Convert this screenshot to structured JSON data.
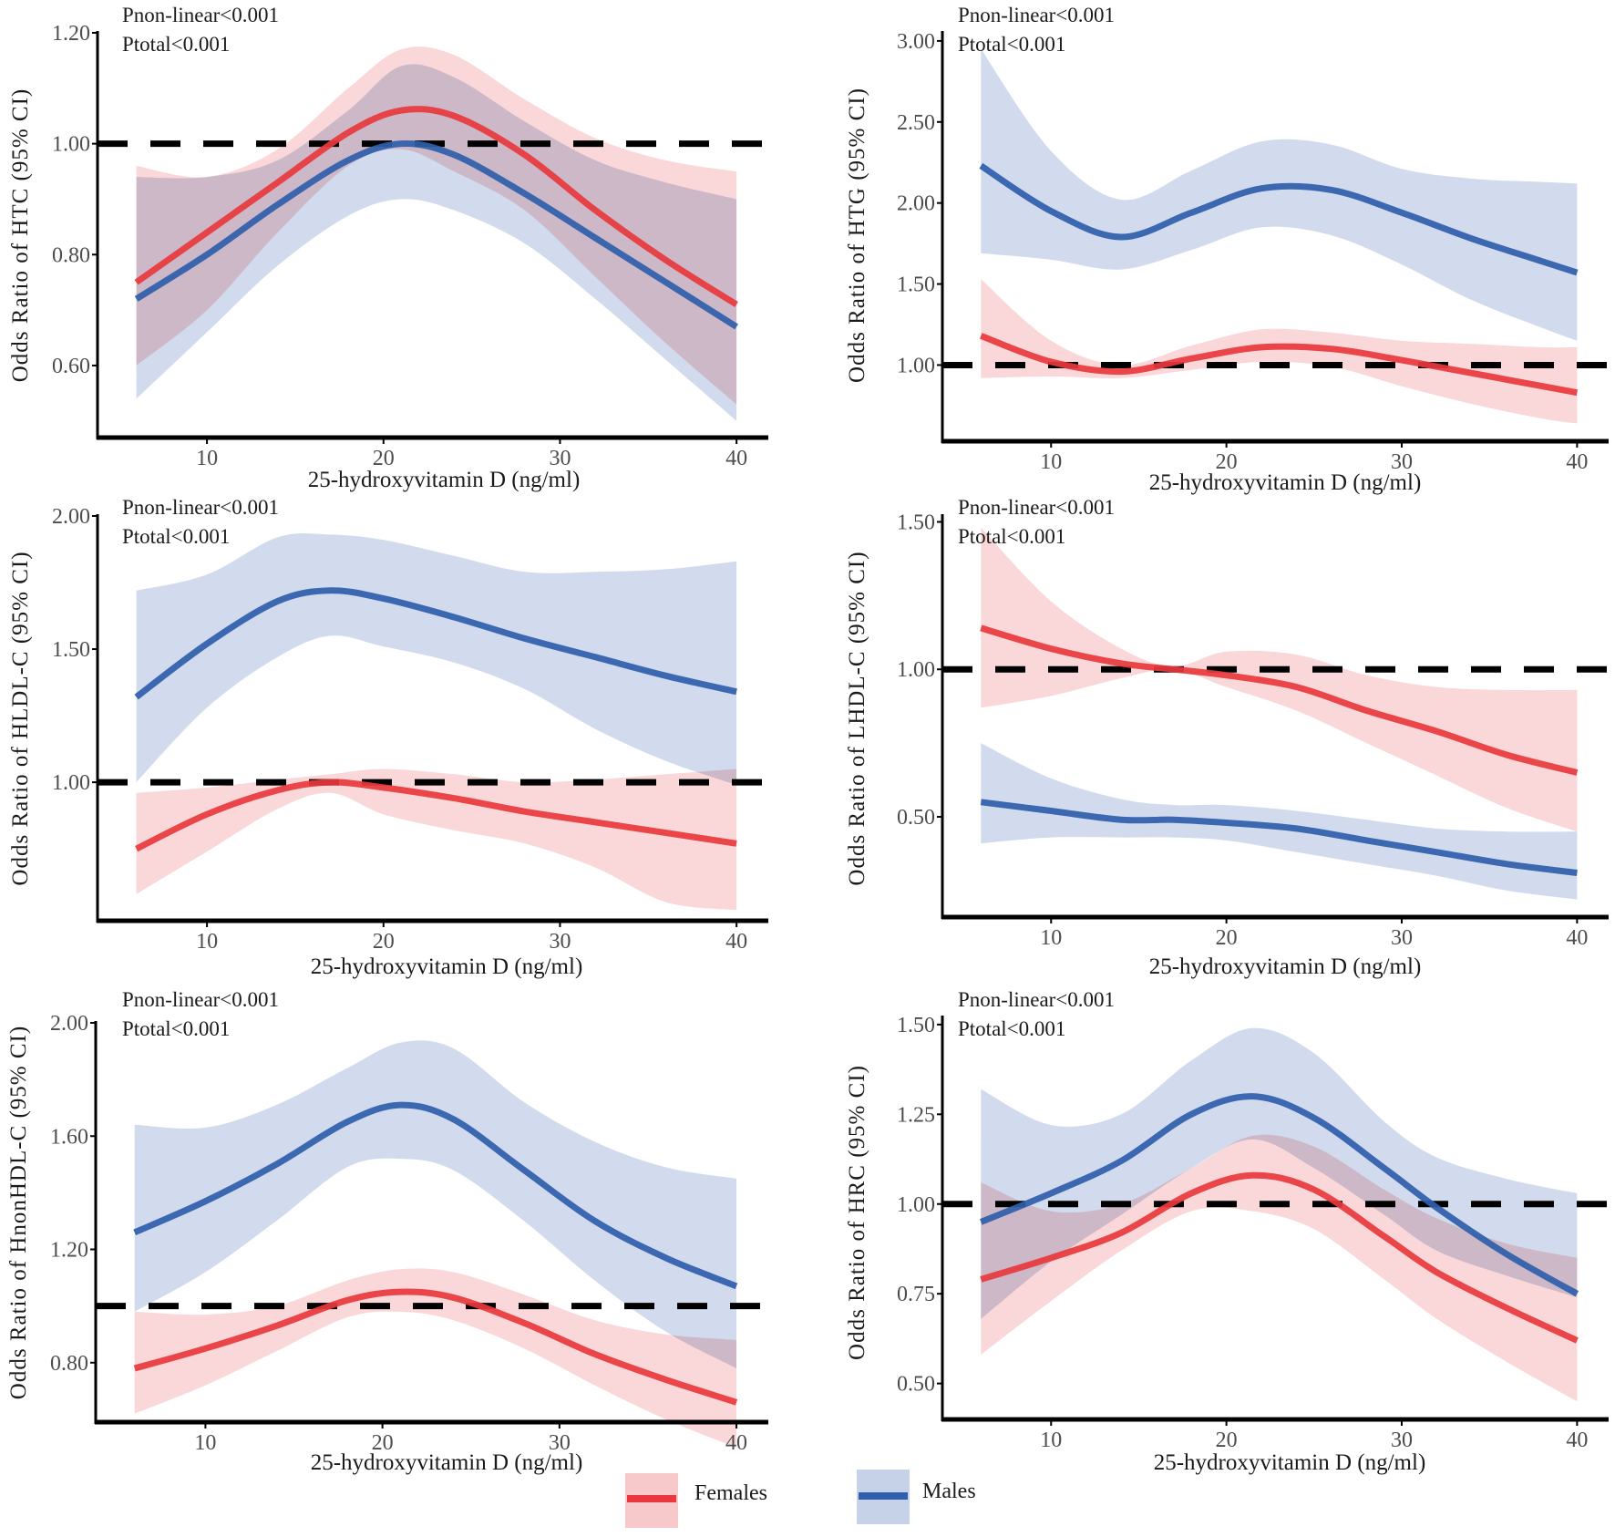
{
  "colors": {
    "females_line": "#e8383d",
    "females_band": "#f8c9cb",
    "males_line": "#2f5eab",
    "males_band": "#c5d2e8",
    "reference_line": "#000000",
    "axis": "#000000"
  },
  "legend": {
    "position": "bottom-center",
    "items": [
      {
        "key": "females",
        "label": "Females"
      },
      {
        "key": "males",
        "label": "Males"
      }
    ]
  },
  "chart_data": [
    {
      "type": "line",
      "panel": "top-left",
      "title": "",
      "xlabel": "25-hydroxyvitamin D (ng/ml)",
      "ylabel": "Odds Ratio of HTC (95% CI)",
      "xlim": [
        3.8,
        41.8
      ],
      "ylim": [
        0.47,
        1.2
      ],
      "xticks": [
        10,
        20,
        30,
        40
      ],
      "yticks": [
        0.6,
        0.8,
        1.0,
        1.2
      ],
      "ytick_labels": [
        "0.60",
        "0.80",
        "1.00",
        "1.20"
      ],
      "reference_line": 1.0,
      "annotations": [
        "Pnon-linear<0.001",
        "Ptotal<0.001"
      ],
      "grid": false,
      "x": [
        6,
        10,
        14,
        18,
        21,
        24,
        28,
        32,
        36,
        40
      ],
      "series": [
        {
          "name": "Males",
          "key": "males",
          "values": [
            0.72,
            0.8,
            0.89,
            0.97,
            1.0,
            0.98,
            0.91,
            0.83,
            0.75,
            0.67
          ],
          "lower": [
            0.54,
            0.66,
            0.78,
            0.87,
            0.9,
            0.88,
            0.82,
            0.72,
            0.61,
            0.5
          ],
          "upper": [
            0.94,
            0.94,
            0.97,
            1.06,
            1.14,
            1.12,
            1.04,
            0.97,
            0.93,
            0.9
          ]
        },
        {
          "name": "Females",
          "key": "females",
          "values": [
            0.75,
            0.84,
            0.93,
            1.02,
            1.06,
            1.05,
            0.98,
            0.88,
            0.79,
            0.71
          ],
          "lower": [
            0.6,
            0.7,
            0.84,
            0.96,
            0.99,
            0.95,
            0.88,
            0.76,
            0.64,
            0.53
          ],
          "upper": [
            0.96,
            0.94,
            0.99,
            1.1,
            1.17,
            1.16,
            1.08,
            1.01,
            0.97,
            0.95
          ]
        }
      ]
    },
    {
      "type": "line",
      "panel": "top-right",
      "title": "",
      "xlabel": "25-hydroxyvitamin D (ng/ml)",
      "ylabel": "Odds Ratio of HTG (95% CI)",
      "xlim": [
        3.8,
        41.8
      ],
      "ylim": [
        0.53,
        3.05
      ],
      "xticks": [
        10,
        20,
        30,
        40
      ],
      "yticks": [
        1.0,
        1.5,
        2.0,
        2.5,
        3.0
      ],
      "ytick_labels": [
        "1.00",
        "1.50",
        "2.00",
        "2.50",
        "3.00"
      ],
      "reference_line": 1.0,
      "annotations": [
        "Pnon-linear<0.001",
        "Ptotal<0.001"
      ],
      "grid": false,
      "x": [
        6,
        10,
        14,
        18,
        22,
        26,
        30,
        34,
        38,
        40
      ],
      "series": [
        {
          "name": "Males",
          "key": "males",
          "values": [
            2.23,
            1.95,
            1.79,
            1.94,
            2.09,
            2.08,
            1.94,
            1.78,
            1.64,
            1.57
          ],
          "lower": [
            1.69,
            1.65,
            1.59,
            1.71,
            1.85,
            1.8,
            1.62,
            1.4,
            1.23,
            1.15
          ],
          "upper": [
            2.95,
            2.32,
            2.02,
            2.2,
            2.38,
            2.36,
            2.21,
            2.15,
            2.13,
            2.12
          ]
        },
        {
          "name": "Females",
          "key": "females",
          "values": [
            1.18,
            1.02,
            0.96,
            1.04,
            1.11,
            1.1,
            1.03,
            0.95,
            0.87,
            0.83
          ],
          "lower": [
            0.92,
            0.93,
            0.92,
            0.97,
            1.02,
            0.99,
            0.87,
            0.76,
            0.67,
            0.64
          ],
          "upper": [
            1.53,
            1.15,
            1.0,
            1.12,
            1.22,
            1.2,
            1.15,
            1.13,
            1.11,
            1.11
          ]
        }
      ]
    },
    {
      "type": "line",
      "panel": "middle-left",
      "title": "",
      "xlabel": "25-hydroxyvitamin D (ng/ml)",
      "ylabel": "Odds Ratio of HLDL-C (95% CI)",
      "xlim": [
        3.8,
        41.8
      ],
      "ylim": [
        0.48,
        2.0
      ],
      "xticks": [
        10,
        20,
        30,
        40
      ],
      "yticks": [
        1.0,
        1.5,
        2.0
      ],
      "ytick_labels": [
        "1.00",
        "1.50",
        "2.00"
      ],
      "reference_line": 1.0,
      "annotations": [
        "Pnon-linear<0.001",
        "Ptotal<0.001"
      ],
      "grid": false,
      "x": [
        6,
        10,
        14,
        17,
        20,
        24,
        28,
        32,
        36,
        40
      ],
      "series": [
        {
          "name": "Males",
          "key": "males",
          "values": [
            1.32,
            1.52,
            1.68,
            1.72,
            1.69,
            1.62,
            1.54,
            1.47,
            1.4,
            1.34
          ],
          "lower": [
            1.0,
            1.28,
            1.47,
            1.55,
            1.51,
            1.45,
            1.35,
            1.2,
            1.08,
            0.99
          ],
          "upper": [
            1.72,
            1.78,
            1.92,
            1.93,
            1.91,
            1.85,
            1.79,
            1.79,
            1.8,
            1.83
          ]
        },
        {
          "name": "Females",
          "key": "females",
          "values": [
            0.75,
            0.88,
            0.97,
            1.0,
            0.98,
            0.94,
            0.89,
            0.85,
            0.81,
            0.77
          ],
          "lower": [
            0.58,
            0.74,
            0.9,
            0.96,
            0.88,
            0.82,
            0.77,
            0.68,
            0.55,
            0.52
          ],
          "upper": [
            0.96,
            0.98,
            1.01,
            1.03,
            1.05,
            1.03,
            1.0,
            1.01,
            1.03,
            1.05
          ]
        }
      ]
    },
    {
      "type": "line",
      "panel": "middle-right",
      "title": "",
      "xlabel": "25-hydroxyvitamin D (ng/ml)",
      "ylabel": "Odds Ratio of LHDL-C (95% CI)",
      "xlim": [
        3.8,
        41.8
      ],
      "ylim": [
        0.16,
        1.52
      ],
      "xticks": [
        10,
        20,
        30,
        40
      ],
      "yticks": [
        0.5,
        1.0,
        1.5
      ],
      "ytick_labels": [
        "0.50",
        "1.00",
        "1.50"
      ],
      "reference_line": 1.0,
      "annotations": [
        "Pnon-linear<0.001",
        "Ptotal<0.001"
      ],
      "grid": false,
      "x": [
        6,
        10,
        14,
        17,
        20,
        24,
        28,
        32,
        36,
        40
      ],
      "series": [
        {
          "name": "Males",
          "key": "males",
          "values": [
            0.55,
            0.52,
            0.49,
            0.49,
            0.48,
            0.46,
            0.42,
            0.38,
            0.34,
            0.31
          ],
          "lower": [
            0.41,
            0.43,
            0.43,
            0.43,
            0.42,
            0.38,
            0.34,
            0.3,
            0.25,
            0.22
          ],
          "upper": [
            0.75,
            0.63,
            0.56,
            0.54,
            0.54,
            0.52,
            0.49,
            0.46,
            0.45,
            0.45
          ]
        },
        {
          "name": "Females",
          "key": "females",
          "values": [
            1.14,
            1.07,
            1.02,
            1.0,
            0.98,
            0.94,
            0.86,
            0.79,
            0.71,
            0.65
          ],
          "lower": [
            0.87,
            0.91,
            0.97,
            1.0,
            0.94,
            0.86,
            0.75,
            0.64,
            0.53,
            0.45
          ],
          "upper": [
            1.48,
            1.23,
            1.07,
            1.01,
            1.06,
            1.05,
            0.98,
            0.94,
            0.93,
            0.93
          ]
        }
      ]
    },
    {
      "type": "line",
      "panel": "bottom-left",
      "title": "",
      "xlabel": "25-hydroxyvitamin D (ng/ml)",
      "ylabel": "Odds Ratio of HnonHDL-C (95% CI)",
      "xlim": [
        3.8,
        41.8
      ],
      "ylim": [
        0.59,
        2.0
      ],
      "xticks": [
        10,
        20,
        30,
        40
      ],
      "yticks": [
        0.8,
        1.2,
        1.6,
        2.0
      ],
      "ytick_labels": [
        "0.80",
        "1.20",
        "1.60",
        "2.00"
      ],
      "reference_line": 1.0,
      "annotations": [
        "Pnon-linear<0.001",
        "Ptotal<0.001"
      ],
      "grid": false,
      "x": [
        6,
        10,
        14,
        18,
        21,
        24,
        28,
        32,
        36,
        40
      ],
      "series": [
        {
          "name": "Males",
          "key": "males",
          "values": [
            1.26,
            1.37,
            1.5,
            1.65,
            1.71,
            1.66,
            1.48,
            1.3,
            1.17,
            1.07
          ],
          "lower": [
            0.98,
            1.12,
            1.3,
            1.49,
            1.52,
            1.48,
            1.3,
            1.09,
            0.91,
            0.78
          ],
          "upper": [
            1.64,
            1.63,
            1.71,
            1.84,
            1.93,
            1.91,
            1.72,
            1.58,
            1.49,
            1.45
          ]
        },
        {
          "name": "Females",
          "key": "females",
          "values": [
            0.78,
            0.85,
            0.93,
            1.02,
            1.05,
            1.03,
            0.94,
            0.83,
            0.74,
            0.66
          ],
          "lower": [
            0.62,
            0.72,
            0.84,
            0.96,
            0.98,
            0.95,
            0.85,
            0.72,
            0.6,
            0.5
          ],
          "upper": [
            0.98,
            0.97,
            1.0,
            1.09,
            1.13,
            1.12,
            1.04,
            0.95,
            0.9,
            0.88
          ]
        }
      ]
    },
    {
      "type": "line",
      "panel": "bottom-right",
      "title": "",
      "xlabel": "25-hydroxyvitamin D (ng/ml)",
      "ylabel": "Odds Ratio of HRC (95% CI)",
      "xlim": [
        3.8,
        41.8
      ],
      "ylim": [
        0.4,
        1.52
      ],
      "xticks": [
        10,
        20,
        30,
        40
      ],
      "yticks": [
        0.5,
        0.75,
        1.0,
        1.25,
        1.5
      ],
      "ytick_labels": [
        "0.50",
        "0.75",
        "1.00",
        "1.25",
        "1.50"
      ],
      "reference_line": 1.0,
      "annotations": [
        "Pnon-linear<0.001",
        "Ptotal<0.001"
      ],
      "grid": false,
      "x": [
        6,
        10,
        14,
        18,
        21.5,
        25,
        29,
        32,
        36,
        40
      ],
      "series": [
        {
          "name": "Males",
          "key": "males",
          "values": [
            0.95,
            1.03,
            1.12,
            1.25,
            1.3,
            1.24,
            1.1,
            0.99,
            0.86,
            0.75
          ],
          "lower": [
            0.68,
            0.84,
            0.97,
            1.1,
            1.18,
            1.1,
            0.97,
            0.87,
            0.8,
            0.74
          ],
          "upper": [
            1.32,
            1.22,
            1.25,
            1.4,
            1.49,
            1.42,
            1.23,
            1.13,
            1.07,
            1.03
          ]
        },
        {
          "name": "Females",
          "key": "females",
          "values": [
            0.79,
            0.85,
            0.92,
            1.03,
            1.08,
            1.04,
            0.91,
            0.81,
            0.71,
            0.62
          ],
          "lower": [
            0.58,
            0.73,
            0.87,
            0.98,
            0.98,
            0.93,
            0.79,
            0.68,
            0.56,
            0.45
          ],
          "upper": [
            1.06,
            0.98,
            1.0,
            1.1,
            1.19,
            1.16,
            1.04,
            0.96,
            0.89,
            0.85
          ]
        }
      ]
    }
  ]
}
